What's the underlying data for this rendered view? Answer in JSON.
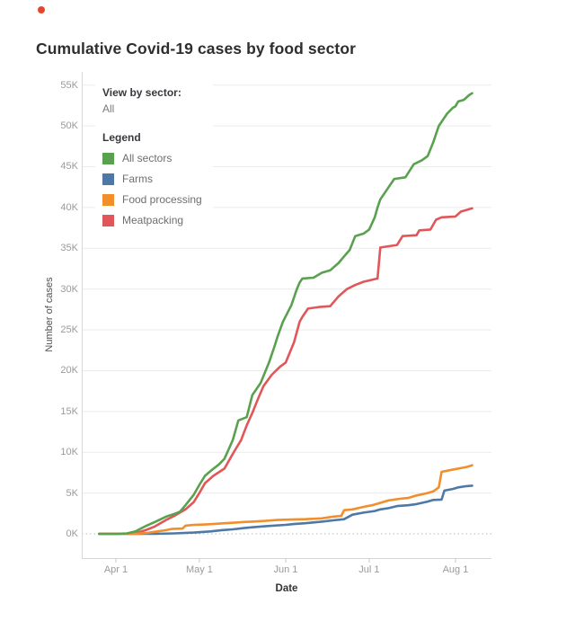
{
  "page": {
    "title": "Cumulative Covid-19 cases by food sector"
  },
  "indicator": {
    "record_dot_color": "#e8432d"
  },
  "controls": {
    "view_by_label": "View by sector:",
    "view_by_value": "All"
  },
  "legend": {
    "title": "Legend"
  },
  "chart_data": {
    "type": "line",
    "title": "Cumulative Covid-19 cases by food sector",
    "xlabel": "Date",
    "ylabel": "Number of cases",
    "grid": "horizontal",
    "legend_position": "inside top-left",
    "x_unit": "day offset (0 = late March 2020, curves end ~Aug 7)",
    "value_unit": "thousands of cumulative cases (K)",
    "ylim": [
      0,
      57
    ],
    "y_ticks": [
      {
        "label": "0K",
        "value": 0
      },
      {
        "label": "5K",
        "value": 5
      },
      {
        "label": "10K",
        "value": 10
      },
      {
        "label": "15K",
        "value": 15
      },
      {
        "label": "20K",
        "value": 20
      },
      {
        "label": "25K",
        "value": 25
      },
      {
        "label": "30K",
        "value": 30
      },
      {
        "label": "35K",
        "value": 35
      },
      {
        "label": "40K",
        "value": 40
      },
      {
        "label": "45K",
        "value": 45
      },
      {
        "label": "50K",
        "value": 50
      },
      {
        "label": "55K",
        "value": 55
      }
    ],
    "x_ticks": [
      {
        "label": "Apr 1",
        "day": 6
      },
      {
        "label": "May 1",
        "day": 36
      },
      {
        "label": "Jun 1",
        "day": 67
      },
      {
        "label": "Jul 1",
        "day": 97
      },
      {
        "label": "Aug 1",
        "day": 128
      }
    ],
    "series": [
      {
        "name": "All sectors",
        "color": "#59a14f",
        "points": [
          [
            0,
            0
          ],
          [
            6,
            0
          ],
          [
            10,
            0.05
          ],
          [
            13,
            0.3
          ],
          [
            17,
            1.0
          ],
          [
            20,
            1.45
          ],
          [
            24,
            2.1
          ],
          [
            27,
            2.45
          ],
          [
            29,
            2.7
          ],
          [
            31,
            3.5
          ],
          [
            34,
            4.8
          ],
          [
            36,
            6.0
          ],
          [
            38,
            7.1
          ],
          [
            40,
            7.7
          ],
          [
            43,
            8.5
          ],
          [
            45,
            9.2
          ],
          [
            48,
            11.5
          ],
          [
            50,
            13.9
          ],
          [
            53,
            14.3
          ],
          [
            55,
            17.0
          ],
          [
            58,
            18.5
          ],
          [
            61,
            21.0
          ],
          [
            63,
            23.0
          ],
          [
            64,
            24.1
          ],
          [
            66,
            26.0
          ],
          [
            69,
            28.0
          ],
          [
            71,
            30.0
          ],
          [
            72,
            30.8
          ],
          [
            73,
            31.3
          ],
          [
            77,
            31.4
          ],
          [
            80,
            32.0
          ],
          [
            83,
            32.3
          ],
          [
            86,
            33.2
          ],
          [
            88,
            34.0
          ],
          [
            90,
            34.8
          ],
          [
            92,
            36.5
          ],
          [
            95,
            36.8
          ],
          [
            97,
            37.3
          ],
          [
            99,
            38.8
          ],
          [
            100,
            40.0
          ],
          [
            101,
            41.0
          ],
          [
            104,
            42.5
          ],
          [
            106,
            43.5
          ],
          [
            110,
            43.7
          ],
          [
            113,
            45.3
          ],
          [
            116,
            45.8
          ],
          [
            118,
            46.3
          ],
          [
            120,
            48.0
          ],
          [
            122,
            50.0
          ],
          [
            125,
            51.5
          ],
          [
            127,
            52.2
          ],
          [
            128,
            52.4
          ],
          [
            129,
            53.0
          ],
          [
            131,
            53.2
          ],
          [
            133,
            53.8
          ],
          [
            134,
            54.0
          ]
        ]
      },
      {
        "name": "Farms",
        "color": "#4e79a7",
        "points": [
          [
            0,
            0
          ],
          [
            20,
            0
          ],
          [
            27,
            0.05
          ],
          [
            34,
            0.15
          ],
          [
            40,
            0.3
          ],
          [
            44,
            0.45
          ],
          [
            48,
            0.55
          ],
          [
            52,
            0.7
          ],
          [
            55,
            0.8
          ],
          [
            60,
            0.95
          ],
          [
            67,
            1.1
          ],
          [
            70,
            1.2
          ],
          [
            74,
            1.3
          ],
          [
            80,
            1.5
          ],
          [
            84,
            1.65
          ],
          [
            88,
            1.8
          ],
          [
            91,
            2.35
          ],
          [
            95,
            2.6
          ],
          [
            99,
            2.8
          ],
          [
            101,
            3.0
          ],
          [
            104,
            3.15
          ],
          [
            107,
            3.4
          ],
          [
            111,
            3.5
          ],
          [
            114,
            3.65
          ],
          [
            118,
            3.95
          ],
          [
            120,
            4.15
          ],
          [
            123,
            4.2
          ],
          [
            124,
            5.3
          ],
          [
            127,
            5.5
          ],
          [
            129,
            5.7
          ],
          [
            132,
            5.85
          ],
          [
            134,
            5.9
          ]
        ]
      },
      {
        "name": "Food processing",
        "color": "#f28e2b",
        "points": [
          [
            0,
            0
          ],
          [
            13,
            0
          ],
          [
            17,
            0.1
          ],
          [
            20,
            0.25
          ],
          [
            24,
            0.45
          ],
          [
            26,
            0.6
          ],
          [
            30,
            0.65
          ],
          [
            31,
            1.0
          ],
          [
            34,
            1.1
          ],
          [
            38,
            1.15
          ],
          [
            41,
            1.2
          ],
          [
            45,
            1.3
          ],
          [
            48,
            1.35
          ],
          [
            52,
            1.45
          ],
          [
            55,
            1.5
          ],
          [
            60,
            1.6
          ],
          [
            64,
            1.7
          ],
          [
            69,
            1.75
          ],
          [
            74,
            1.8
          ],
          [
            80,
            1.9
          ],
          [
            84,
            2.1
          ],
          [
            87,
            2.2
          ],
          [
            88,
            2.9
          ],
          [
            91,
            3.0
          ],
          [
            95,
            3.3
          ],
          [
            98,
            3.5
          ],
          [
            102,
            3.9
          ],
          [
            104,
            4.1
          ],
          [
            108,
            4.3
          ],
          [
            111,
            4.4
          ],
          [
            114,
            4.7
          ],
          [
            118,
            5.0
          ],
          [
            120,
            5.2
          ],
          [
            122,
            5.7
          ],
          [
            123,
            7.6
          ],
          [
            126,
            7.8
          ],
          [
            129,
            8.0
          ],
          [
            132,
            8.2
          ],
          [
            134,
            8.4
          ]
        ]
      },
      {
        "name": "Meatpacking",
        "color": "#e15759",
        "points": [
          [
            0,
            0
          ],
          [
            6,
            0
          ],
          [
            13,
            0.05
          ],
          [
            17,
            0.5
          ],
          [
            20,
            0.9
          ],
          [
            24,
            1.7
          ],
          [
            27,
            2.2
          ],
          [
            29,
            2.6
          ],
          [
            31,
            3.0
          ],
          [
            34,
            3.9
          ],
          [
            36,
            5.0
          ],
          [
            38,
            6.2
          ],
          [
            41,
            7.1
          ],
          [
            45,
            8.0
          ],
          [
            48,
            9.8
          ],
          [
            51,
            11.5
          ],
          [
            53,
            13.3
          ],
          [
            55,
            14.8
          ],
          [
            57,
            16.5
          ],
          [
            59,
            18.1
          ],
          [
            62,
            19.5
          ],
          [
            65,
            20.5
          ],
          [
            67,
            21.0
          ],
          [
            70,
            23.5
          ],
          [
            72,
            26.0
          ],
          [
            73,
            26.6
          ],
          [
            75,
            27.6
          ],
          [
            79,
            27.8
          ],
          [
            83,
            27.9
          ],
          [
            86,
            29.1
          ],
          [
            89,
            30.0
          ],
          [
            92,
            30.5
          ],
          [
            95,
            30.9
          ],
          [
            100,
            31.3
          ],
          [
            101,
            35.1
          ],
          [
            107,
            35.4
          ],
          [
            109,
            36.5
          ],
          [
            114,
            36.6
          ],
          [
            115,
            37.2
          ],
          [
            119,
            37.3
          ],
          [
            121,
            38.5
          ],
          [
            123,
            38.8
          ],
          [
            128,
            38.9
          ],
          [
            130,
            39.5
          ],
          [
            132,
            39.7
          ],
          [
            134,
            39.9
          ]
        ]
      }
    ]
  }
}
